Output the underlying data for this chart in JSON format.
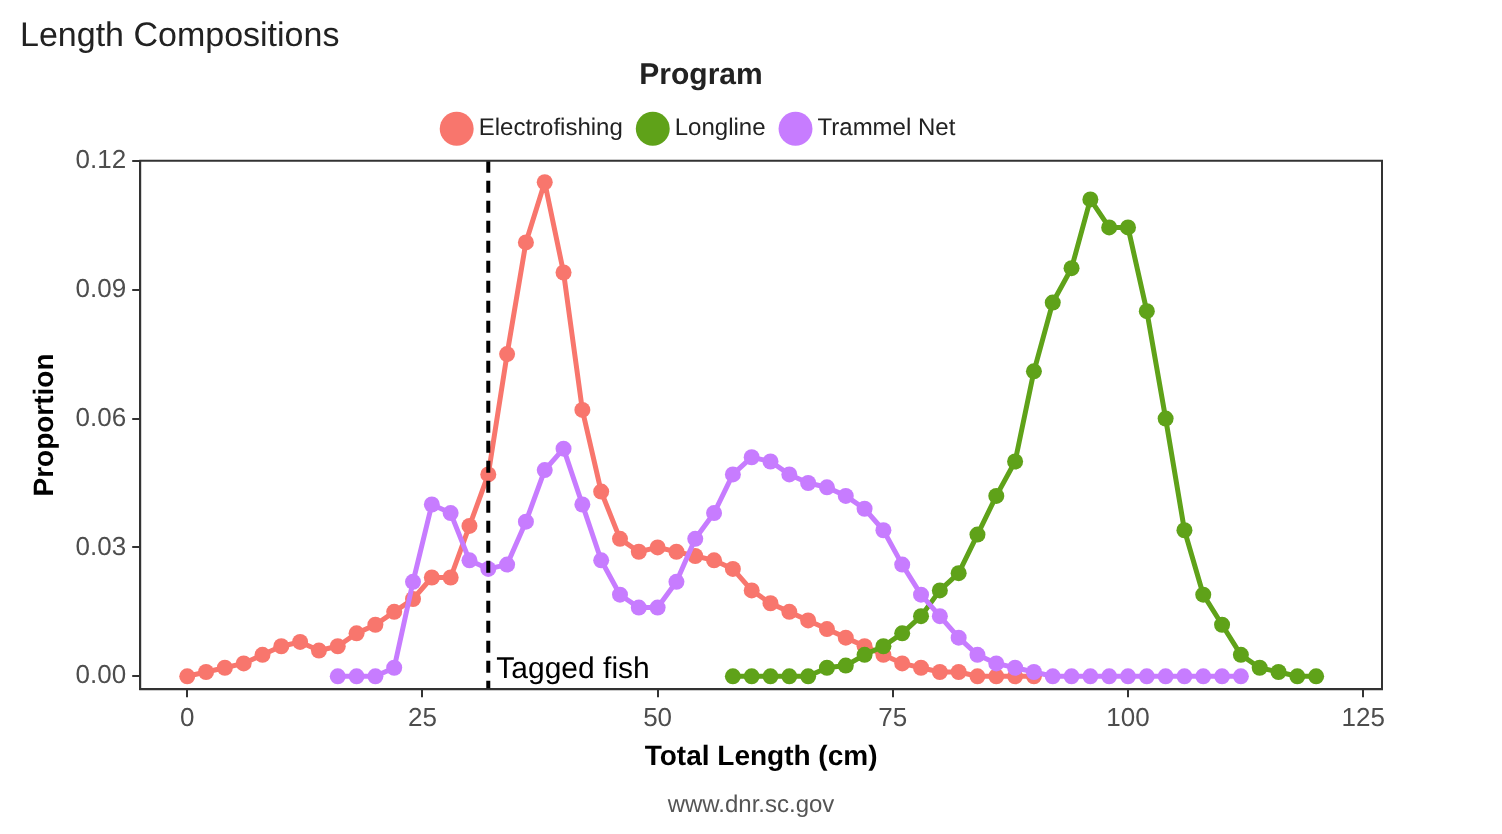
{
  "chart_data": {
    "type": "line",
    "title": "Length Compositions",
    "xlabel": "Total Length (cm)",
    "ylabel": "Proportion",
    "legend_title": "Program",
    "legend": "top",
    "grid": false,
    "marker": "circle",
    "line_style": "solid",
    "xlim": [
      -5,
      127
    ],
    "xticks": [
      0,
      25,
      50,
      75,
      100,
      125
    ],
    "ylim": [
      -0.003,
      0.12
    ],
    "yticks": [
      {
        "value": 0,
        "label": "0.00"
      },
      {
        "value": 0.03,
        "label": "0.03"
      },
      {
        "value": 0.06,
        "label": "0.06"
      },
      {
        "value": 0.09,
        "label": "0.09"
      },
      {
        "value": 0.12,
        "label": "0.12"
      }
    ],
    "series": [
      {
        "name": "Electrofishing",
        "color": "#f8766d",
        "x": [
          0,
          2,
          4,
          6,
          8,
          10,
          12,
          14,
          16,
          18,
          20,
          22,
          24,
          26,
          28,
          30,
          32,
          34,
          36,
          38,
          40,
          42,
          44,
          46,
          48,
          50,
          52,
          54,
          56,
          58,
          60,
          62,
          64,
          66,
          68,
          70,
          72,
          74,
          76,
          78,
          80,
          82,
          84,
          86,
          88,
          90
        ],
        "values": [
          0,
          0.001,
          0.002,
          0.003,
          0.005,
          0.007,
          0.008,
          0.006,
          0.007,
          0.01,
          0.012,
          0.015,
          0.018,
          0.023,
          0.023,
          0.035,
          0.047,
          0.075,
          0.101,
          0.115,
          0.094,
          0.062,
          0.043,
          0.032,
          0.029,
          0.03,
          0.029,
          0.028,
          0.027,
          0.025,
          0.02,
          0.017,
          0.015,
          0.013,
          0.011,
          0.009,
          0.007,
          0.005,
          0.003,
          0.002,
          0.001,
          0.001,
          0,
          0,
          0,
          0
        ]
      },
      {
        "name": "Longline",
        "color": "#5fa219",
        "x": [
          58,
          60,
          62,
          64,
          66,
          68,
          70,
          72,
          74,
          76,
          78,
          80,
          82,
          84,
          86,
          88,
          90,
          92,
          94,
          96,
          98,
          100,
          102,
          104,
          106,
          108,
          110,
          112,
          114,
          116,
          118,
          120
        ],
        "values": [
          0,
          0,
          0,
          0,
          0,
          0.002,
          0.0025,
          0.005,
          0.007,
          0.01,
          0.014,
          0.02,
          0.024,
          0.033,
          0.042,
          0.05,
          0.071,
          0.087,
          0.095,
          0.111,
          0.1045,
          0.1045,
          0.085,
          0.06,
          0.034,
          0.019,
          0.012,
          0.005,
          0.002,
          0.001,
          0,
          0
        ]
      },
      {
        "name": "Trammel Net",
        "color": "#c77cff",
        "x": [
          16,
          18,
          20,
          22,
          24,
          26,
          28,
          30,
          32,
          34,
          36,
          38,
          40,
          42,
          44,
          46,
          48,
          50,
          52,
          54,
          56,
          58,
          60,
          62,
          64,
          66,
          68,
          70,
          72,
          74,
          76,
          78,
          80,
          82,
          84,
          86,
          88,
          90,
          92,
          94,
          96,
          98,
          100,
          102,
          104,
          106,
          108,
          110,
          112
        ],
        "values": [
          0,
          0,
          0,
          0.002,
          0.022,
          0.04,
          0.038,
          0.027,
          0.025,
          0.026,
          0.036,
          0.048,
          0.053,
          0.04,
          0.027,
          0.019,
          0.016,
          0.016,
          0.022,
          0.032,
          0.038,
          0.047,
          0.051,
          0.05,
          0.047,
          0.045,
          0.044,
          0.042,
          0.039,
          0.034,
          0.026,
          0.019,
          0.014,
          0.009,
          0.005,
          0.003,
          0.002,
          0.001,
          0,
          0,
          0,
          0,
          0,
          0,
          0,
          0,
          0,
          0,
          0
        ]
      }
    ],
    "ref_lines": [
      {
        "axis": "x",
        "value": 32,
        "label": "Tagged fish",
        "color": "#000000",
        "line_style": "dashed"
      }
    ],
    "annotations": [
      "www.dnr.sc.gov"
    ]
  }
}
